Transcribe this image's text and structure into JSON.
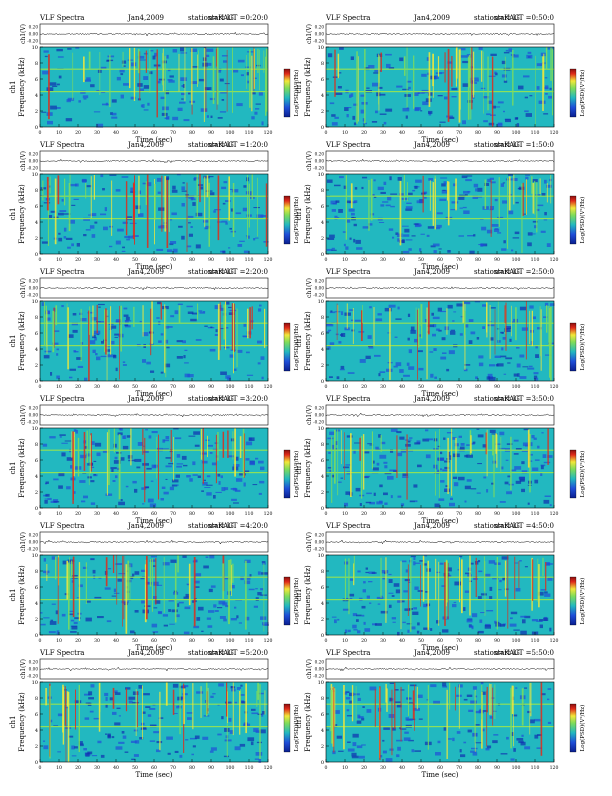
{
  "page": {
    "title": "VLF Spectra",
    "date": "Jan4,2009",
    "station": "station=KAG",
    "start_prefix": "start UT"
  },
  "panel_labels": {
    "xlabel": "Time (sec)",
    "ylabel": "Frequency (kHz)",
    "channel_label": "ch1",
    "amp_label": "ch1(V)",
    "colorbar_label": "Log(PSD)(V²/Hz)"
  },
  "colors": {
    "background": "#ffffff",
    "spectrum_base": "#22b8c0",
    "low_power": "#1f4ed8",
    "high_power": "#f2e83a",
    "peak_power": "#e02a1a"
  },
  "chart_data": [
    {
      "type": "heatmap",
      "title": "start UT =0:20:0",
      "xlabel": "Time (sec)",
      "ylabel": "Frequency (kHz)",
      "xlim": [
        0,
        120
      ],
      "ylim": [
        0,
        10
      ],
      "x_ticks": [
        0,
        10,
        20,
        30,
        40,
        50,
        60,
        70,
        80,
        90,
        100,
        110,
        120
      ],
      "y_ticks": [
        0,
        2,
        4,
        6,
        8,
        10
      ],
      "amp_ticks": [
        "0.20",
        "0.00",
        "-0.20"
      ],
      "intensity": 0.55
    },
    {
      "type": "heatmap",
      "title": "start UT =0:50:0",
      "xlabel": "Time (sec)",
      "ylabel": "Frequency (kHz)",
      "xlim": [
        0,
        120
      ],
      "ylim": [
        0,
        10
      ],
      "x_ticks": [
        0,
        10,
        20,
        30,
        40,
        50,
        60,
        70,
        80,
        90,
        100,
        110,
        120
      ],
      "y_ticks": [
        0,
        2,
        4,
        6,
        8,
        10
      ],
      "amp_ticks": [
        "0.20",
        "0.00",
        "-0.20"
      ],
      "intensity": 0.5
    },
    {
      "type": "heatmap",
      "title": "start UT =1:20:0",
      "xlabel": "Time (sec)",
      "ylabel": "Frequency (kHz)",
      "xlim": [
        0,
        120
      ],
      "ylim": [
        0,
        10
      ],
      "x_ticks": [
        0,
        10,
        20,
        30,
        40,
        50,
        60,
        70,
        80,
        90,
        100,
        110,
        120
      ],
      "y_ticks": [
        0,
        2,
        4,
        6,
        8,
        10
      ],
      "amp_ticks": [
        "0.20",
        "0.00",
        "-0.20"
      ],
      "intensity": 0.5
    },
    {
      "type": "heatmap",
      "title": "start UT =1:50:0",
      "xlabel": "Time (sec)",
      "ylabel": "Frequency (kHz)",
      "xlim": [
        0,
        120
      ],
      "ylim": [
        0,
        10
      ],
      "x_ticks": [
        0,
        10,
        20,
        30,
        40,
        50,
        60,
        70,
        80,
        90,
        100,
        110,
        120
      ],
      "y_ticks": [
        0,
        2,
        4,
        6,
        8,
        10
      ],
      "amp_ticks": [
        "0.20",
        "0.00",
        "-0.20"
      ],
      "intensity": 0.3
    },
    {
      "type": "heatmap",
      "title": "start UT =2:20:0",
      "xlabel": "Time (sec)",
      "ylabel": "Frequency (kHz)",
      "xlim": [
        0,
        120
      ],
      "ylim": [
        0,
        10
      ],
      "x_ticks": [
        0,
        10,
        20,
        30,
        40,
        50,
        60,
        70,
        80,
        90,
        100,
        110,
        120
      ],
      "y_ticks": [
        0,
        2,
        4,
        6,
        8,
        10
      ],
      "amp_ticks": [
        "0.20",
        "0.00",
        "-0.20"
      ],
      "intensity": 0.5
    },
    {
      "type": "heatmap",
      "title": "start UT =2:50:0",
      "xlabel": "Time (sec)",
      "ylabel": "Frequency (kHz)",
      "xlim": [
        0,
        120
      ],
      "ylim": [
        0,
        10
      ],
      "x_ticks": [
        0,
        10,
        20,
        30,
        40,
        50,
        60,
        70,
        80,
        90,
        100,
        110,
        120
      ],
      "y_ticks": [
        0,
        2,
        4,
        6,
        8,
        10
      ],
      "amp_ticks": [
        "0.20",
        "0.00",
        "-0.20"
      ],
      "intensity": 0.45
    },
    {
      "type": "heatmap",
      "title": "start UT =3:20:0",
      "xlabel": "Time (sec)",
      "ylabel": "Frequency (kHz)",
      "xlim": [
        0,
        120
      ],
      "ylim": [
        0,
        10
      ],
      "x_ticks": [
        0,
        10,
        20,
        30,
        40,
        50,
        60,
        70,
        80,
        90,
        100,
        110,
        120
      ],
      "y_ticks": [
        0,
        2,
        4,
        6,
        8,
        10
      ],
      "amp_ticks": [
        "0.20",
        "0.00",
        "-0.20"
      ],
      "intensity": 0.35
    },
    {
      "type": "heatmap",
      "title": "start UT =3:50:0",
      "xlabel": "Time (sec)",
      "ylabel": "Frequency (kHz)",
      "xlim": [
        0,
        120
      ],
      "ylim": [
        0,
        10
      ],
      "x_ticks": [
        0,
        10,
        20,
        30,
        40,
        50,
        60,
        70,
        80,
        90,
        100,
        110,
        120
      ],
      "y_ticks": [
        0,
        2,
        4,
        6,
        8,
        10
      ],
      "amp_ticks": [
        "0.20",
        "0.00",
        "-0.20"
      ],
      "intensity": 0.3
    },
    {
      "type": "heatmap",
      "title": "start UT =4:20:0",
      "xlabel": "Time (sec)",
      "ylabel": "Frequency (kHz)",
      "xlim": [
        0,
        120
      ],
      "ylim": [
        0,
        10
      ],
      "x_ticks": [
        0,
        10,
        20,
        30,
        40,
        50,
        60,
        70,
        80,
        90,
        100,
        110,
        120
      ],
      "y_ticks": [
        0,
        2,
        4,
        6,
        8,
        10
      ],
      "amp_ticks": [
        "0.20",
        "0.00",
        "-0.20"
      ],
      "intensity": 0.45
    },
    {
      "type": "heatmap",
      "title": "start UT =4:50:0",
      "xlabel": "Time (sec)",
      "ylabel": "Frequency (kHz)",
      "xlim": [
        0,
        120
      ],
      "ylim": [
        0,
        10
      ],
      "x_ticks": [
        0,
        10,
        20,
        30,
        40,
        50,
        60,
        70,
        80,
        90,
        100,
        110,
        120
      ],
      "y_ticks": [
        0,
        2,
        4,
        6,
        8,
        10
      ],
      "amp_ticks": [
        "0.20",
        "0.00",
        "-0.20"
      ],
      "intensity": 0.4
    },
    {
      "type": "heatmap",
      "title": "start UT =5:20:0",
      "xlabel": "Time (sec)",
      "ylabel": "Frequency (kHz)",
      "xlim": [
        0,
        120
      ],
      "ylim": [
        0,
        10
      ],
      "x_ticks": [
        0,
        10,
        20,
        30,
        40,
        50,
        60,
        70,
        80,
        90,
        100,
        110,
        120
      ],
      "y_ticks": [
        0,
        2,
        4,
        6,
        8,
        10
      ],
      "amp_ticks": [
        "0.20",
        "0.00",
        "-0.20"
      ],
      "intensity": 0.5
    },
    {
      "type": "heatmap",
      "title": "start UT =5:50:0",
      "xlabel": "Time (sec)",
      "ylabel": "Frequency (kHz)",
      "xlim": [
        0,
        120
      ],
      "ylim": [
        0,
        10
      ],
      "x_ticks": [
        0,
        10,
        20,
        30,
        40,
        50,
        60,
        70,
        80,
        90,
        100,
        110,
        120
      ],
      "y_ticks": [
        0,
        2,
        4,
        6,
        8,
        10
      ],
      "amp_ticks": [
        "0.20",
        "0.00",
        "-0.20"
      ],
      "intensity": 0.55
    }
  ]
}
